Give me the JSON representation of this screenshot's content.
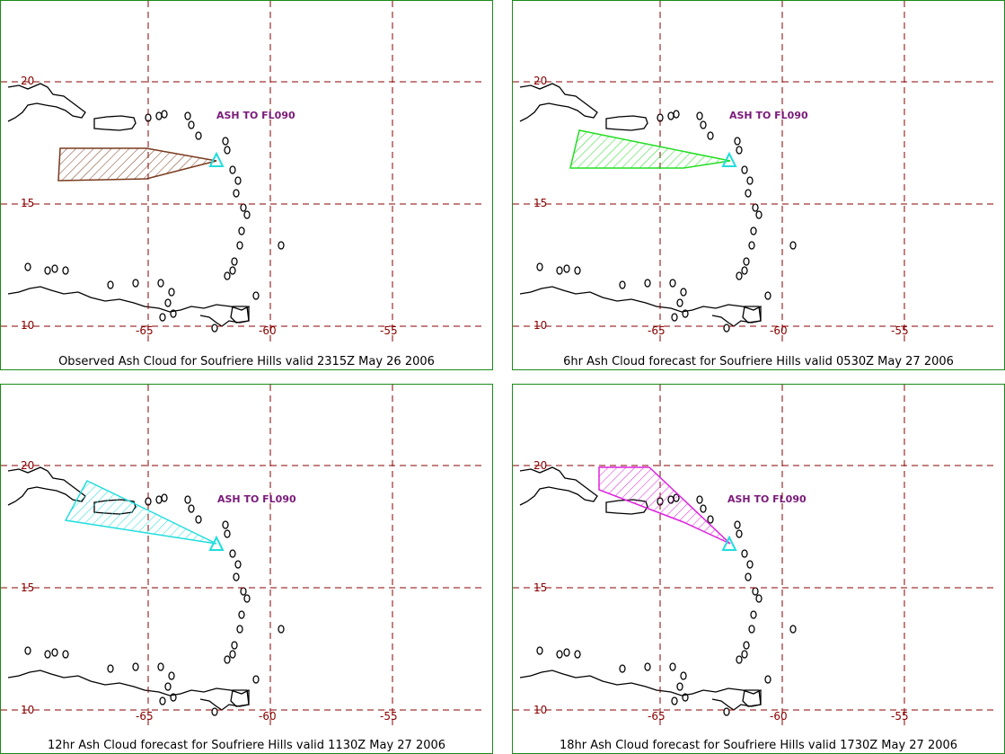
{
  "panels": [
    {
      "caption": "Observed Ash Cloud for Soufriere  Hills valid 2315Z May 26 2006",
      "ash_label": "ASH TO FL090",
      "cloud_color": "#7a3a1e"
    },
    {
      "caption": "6hr Ash Cloud forecast for Soufriere  Hills valid 0530Z May 27 2006",
      "ash_label": "ASH TO FL090",
      "cloud_color": "#22dd22"
    },
    {
      "caption": "12hr Ash Cloud forecast for Soufriere  Hills valid 1130Z May 27 2006",
      "ash_label": "ASH TO FL090",
      "cloud_color": "#22dddd"
    },
    {
      "caption": "18hr Ash Cloud forecast for Soufriere  Hills valid 1730Z May 27 2006",
      "ash_label": "ASH TO FL090",
      "cloud_color": "#dd22dd"
    }
  ],
  "lat_labels": [
    "20",
    "15",
    "10"
  ],
  "lon_labels": [
    "-65",
    "-60",
    "-55"
  ],
  "colors": {
    "grid": "#8a0000",
    "border": "#1a8a1a",
    "volcano": "#22dddd",
    "coast": "#000000"
  }
}
